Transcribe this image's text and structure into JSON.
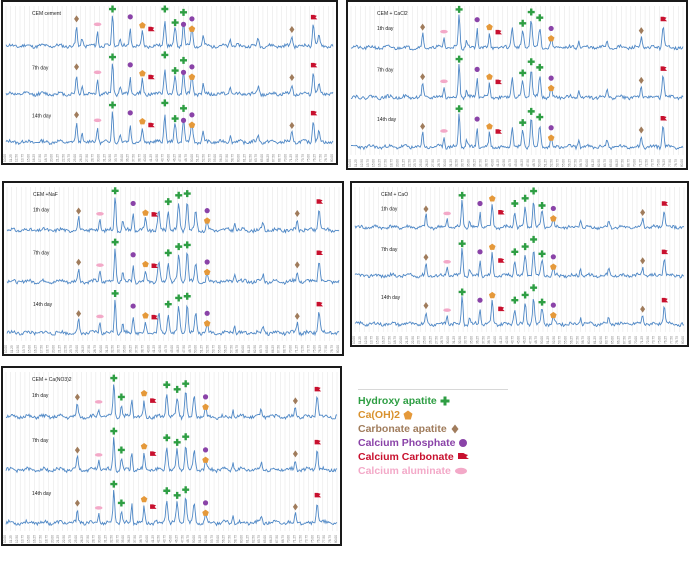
{
  "colors": {
    "line": "#4f88c6",
    "grid": "#e3e3e3",
    "axis_text": "#7a7a7a",
    "hydroxy_apatite": "#2e9e43",
    "caoh2": "#e5993a",
    "carbonate_apatite": "#a07c5c",
    "calcium_phosphate": "#8a43a8",
    "calcium_carbonate": "#c8102e",
    "calcium_aluminate": "#f3a9c8"
  },
  "legend": [
    {
      "key": "hydroxy_apatite",
      "label": "Hydroxy apatite",
      "icon": "cross-icon",
      "color": "#2e9e43"
    },
    {
      "key": "caoh2",
      "label": "Ca(OH)2",
      "icon": "pentagon-icon",
      "color": "#d9922e"
    },
    {
      "key": "carbonate_apatite",
      "label": "Carbonate apatite",
      "icon": "diamond-icon",
      "color": "#a07c5c"
    },
    {
      "key": "calcium_phosphate",
      "label": "Calcium Phosphate",
      "icon": "circle-icon",
      "color": "#8a43a8"
    },
    {
      "key": "calcium_carbonate",
      "label": "Calcium Carbonate",
      "icon": "flag-icon",
      "color": "#c8102e"
    },
    {
      "key": "calcium_aluminate",
      "label": "Calcium aluminate",
      "icon": "ellipse-icon",
      "color": "#f3a9c8"
    }
  ],
  "chart_data": [
    {
      "type": "line",
      "group": "CEM cement",
      "x_range": [
        10,
        80
      ],
      "y_range": [
        0,
        1
      ],
      "peaks": [
        {
          "x": 25.1,
          "h": 0.55,
          "w": 0.22
        },
        {
          "x": 26.3,
          "h": 0.25,
          "w": 0.25
        },
        {
          "x": 29.6,
          "h": 0.45,
          "w": 0.22
        },
        {
          "x": 32.8,
          "h": 0.95,
          "w": 0.25
        },
        {
          "x": 34.4,
          "h": 0.22,
          "w": 0.25
        },
        {
          "x": 36.6,
          "h": 0.55,
          "w": 0.22
        },
        {
          "x": 39.2,
          "h": 0.42,
          "w": 0.22
        },
        {
          "x": 44.0,
          "h": 0.78,
          "w": 0.3
        },
        {
          "x": 46.2,
          "h": 0.5,
          "w": 0.3
        },
        {
          "x": 48.0,
          "h": 0.68,
          "w": 0.3
        },
        {
          "x": 49.8,
          "h": 0.55,
          "w": 0.3
        },
        {
          "x": 52.2,
          "h": 0.28,
          "w": 0.25
        },
        {
          "x": 58.0,
          "h": 0.2,
          "w": 0.25
        },
        {
          "x": 64.0,
          "h": 0.22,
          "w": 0.25
        },
        {
          "x": 71.2,
          "h": 0.3,
          "w": 0.25
        },
        {
          "x": 75.8,
          "h": 0.65,
          "w": 0.3
        },
        {
          "x": 77.0,
          "h": 0.3,
          "w": 0.3
        }
      ],
      "markers": [
        {
          "type": "carbonate_apatite",
          "x": 25.1,
          "dy": -6
        },
        {
          "type": "calcium_aluminate",
          "x": 29.6,
          "dy": -4
        },
        {
          "type": "hydroxy_apatite",
          "x": 32.8,
          "dy": -2
        },
        {
          "type": "calcium_phosphate",
          "x": 36.6,
          "dy": -8
        },
        {
          "type": "caoh2",
          "x": 39.2,
          "dy": -4
        },
        {
          "type": "calcium_carbonate",
          "x": 41.0,
          "dy": -6
        },
        {
          "type": "hydroxy_apatite",
          "x": 44.0,
          "dy": -10
        },
        {
          "type": "hydroxy_apatite",
          "x": 46.2,
          "dy": -4
        },
        {
          "type": "hydroxy_apatite",
          "x": 48.0,
          "dy": -8
        },
        {
          "type": "calcium_phosphate",
          "x": 48.0,
          "dy": 4
        },
        {
          "type": "calcium_phosphate",
          "x": 49.8,
          "dy": -6
        },
        {
          "type": "caoh2",
          "x": 49.8,
          "dy": 4
        },
        {
          "type": "carbonate_apatite",
          "x": 71.2,
          "dy": -4
        },
        {
          "type": "calcium_carbonate",
          "x": 75.8,
          "dy": -4
        }
      ],
      "traces": [
        {
          "label": "",
          "seed": 11
        },
        {
          "label": "7th day",
          "seed": 12
        },
        {
          "label": "14th day",
          "seed": 13
        }
      ]
    },
    {
      "type": "line",
      "group": "CEM + CaCl2",
      "x_range": [
        10,
        80
      ],
      "y_range": [
        0,
        1
      ],
      "peaks": [
        {
          "x": 25.1,
          "h": 0.4,
          "w": 0.22
        },
        {
          "x": 29.6,
          "h": 0.3,
          "w": 0.22
        },
        {
          "x": 32.8,
          "h": 0.95,
          "w": 0.25
        },
        {
          "x": 34.4,
          "h": 0.2,
          "w": 0.25
        },
        {
          "x": 36.6,
          "h": 0.55,
          "w": 0.22
        },
        {
          "x": 39.2,
          "h": 0.4,
          "w": 0.22
        },
        {
          "x": 44.0,
          "h": 0.62,
          "w": 0.3
        },
        {
          "x": 46.2,
          "h": 0.45,
          "w": 0.3
        },
        {
          "x": 48.0,
          "h": 0.82,
          "w": 0.3
        },
        {
          "x": 49.8,
          "h": 0.55,
          "w": 0.3
        },
        {
          "x": 52.2,
          "h": 0.25,
          "w": 0.25
        },
        {
          "x": 58.0,
          "h": 0.2,
          "w": 0.25
        },
        {
          "x": 64.0,
          "h": 0.2,
          "w": 0.25
        },
        {
          "x": 71.2,
          "h": 0.3,
          "w": 0.25
        },
        {
          "x": 75.8,
          "h": 0.62,
          "w": 0.3
        }
      ],
      "markers": [
        {
          "type": "carbonate_apatite",
          "x": 25.1,
          "dy": -4
        },
        {
          "type": "calcium_aluminate",
          "x": 29.6,
          "dy": -3
        },
        {
          "type": "hydroxy_apatite",
          "x": 32.8,
          "dy": -2
        },
        {
          "type": "calcium_phosphate",
          "x": 36.6,
          "dy": -6
        },
        {
          "type": "caoh2",
          "x": 39.2,
          "dy": -4
        },
        {
          "type": "calcium_carbonate",
          "x": 41.0,
          "dy": -4
        },
        {
          "type": "hydroxy_apatite",
          "x": 46.2,
          "dy": -6
        },
        {
          "type": "hydroxy_apatite",
          "x": 48.0,
          "dy": -4
        },
        {
          "type": "hydroxy_apatite",
          "x": 49.8,
          "dy": -8
        },
        {
          "type": "calcium_phosphate",
          "x": 52.2,
          "dy": -8
        },
        {
          "type": "caoh2",
          "x": 52.2,
          "dy": 2
        },
        {
          "type": "carbonate_apatite",
          "x": 71.2,
          "dy": -4
        },
        {
          "type": "calcium_carbonate",
          "x": 75.8,
          "dy": -4
        }
      ],
      "traces": [
        {
          "label": "1th day",
          "seed": 21
        },
        {
          "label": "7th day",
          "seed": 22
        },
        {
          "label": "14th day",
          "seed": 23
        }
      ]
    },
    {
      "type": "line",
      "group": "CEM +NaF",
      "x_range": [
        10,
        80
      ],
      "y_range": [
        0,
        1
      ],
      "peaks": [
        {
          "x": 25.1,
          "h": 0.35,
          "w": 0.22
        },
        {
          "x": 29.6,
          "h": 0.3,
          "w": 0.22
        },
        {
          "x": 32.8,
          "h": 0.95,
          "w": 0.25
        },
        {
          "x": 34.4,
          "h": 0.25,
          "w": 0.25
        },
        {
          "x": 36.6,
          "h": 0.5,
          "w": 0.22
        },
        {
          "x": 39.2,
          "h": 0.3,
          "w": 0.22
        },
        {
          "x": 42.0,
          "h": 0.5,
          "w": 0.3
        },
        {
          "x": 44.0,
          "h": 0.55,
          "w": 0.3
        },
        {
          "x": 46.2,
          "h": 0.72,
          "w": 0.3
        },
        {
          "x": 48.0,
          "h": 0.82,
          "w": 0.3
        },
        {
          "x": 49.8,
          "h": 0.5,
          "w": 0.3
        },
        {
          "x": 52.2,
          "h": 0.25,
          "w": 0.25
        },
        {
          "x": 58.0,
          "h": 0.2,
          "w": 0.25
        },
        {
          "x": 64.0,
          "h": 0.2,
          "w": 0.25
        },
        {
          "x": 71.2,
          "h": 0.28,
          "w": 0.25
        },
        {
          "x": 75.8,
          "h": 0.6,
          "w": 0.3
        }
      ],
      "markers": [
        {
          "type": "hydroxy_apatite",
          "x": 32.8,
          "dy": -2
        },
        {
          "type": "carbonate_apatite",
          "x": 25.1,
          "dy": -4
        },
        {
          "type": "calcium_aluminate",
          "x": 29.6,
          "dy": -3
        },
        {
          "type": "calcium_phosphate",
          "x": 36.6,
          "dy": -6
        },
        {
          "type": "caoh2",
          "x": 39.2,
          "dy": -4
        },
        {
          "type": "calcium_carbonate",
          "x": 41.0,
          "dy": -4
        },
        {
          "type": "hydroxy_apatite",
          "x": 44.0,
          "dy": -6
        },
        {
          "type": "hydroxy_apatite",
          "x": 46.2,
          "dy": -6
        },
        {
          "type": "hydroxy_apatite",
          "x": 48.0,
          "dy": -4
        },
        {
          "type": "calcium_phosphate",
          "x": 52.2,
          "dy": -8
        },
        {
          "type": "caoh2",
          "x": 52.2,
          "dy": 2
        },
        {
          "type": "carbonate_apatite",
          "x": 71.2,
          "dy": -4
        },
        {
          "type": "calcium_carbonate",
          "x": 75.8,
          "dy": -4
        }
      ],
      "traces": [
        {
          "label": "1th day",
          "seed": 31
        },
        {
          "label": "7th day",
          "seed": 32
        },
        {
          "label": "14th day",
          "seed": 33
        }
      ]
    },
    {
      "type": "line",
      "group": "CEM + CaO",
      "x_range": [
        10,
        80
      ],
      "y_range": [
        0,
        1
      ],
      "peaks": [
        {
          "x": 25.1,
          "h": 0.35,
          "w": 0.22
        },
        {
          "x": 29.6,
          "h": 0.25,
          "w": 0.22
        },
        {
          "x": 32.8,
          "h": 0.8,
          "w": 0.25
        },
        {
          "x": 34.4,
          "h": 0.2,
          "w": 0.25
        },
        {
          "x": 36.6,
          "h": 0.45,
          "w": 0.22
        },
        {
          "x": 39.2,
          "h": 0.65,
          "w": 0.25
        },
        {
          "x": 44.0,
          "h": 0.45,
          "w": 0.3
        },
        {
          "x": 46.2,
          "h": 0.6,
          "w": 0.3
        },
        {
          "x": 48.0,
          "h": 0.75,
          "w": 0.3
        },
        {
          "x": 49.8,
          "h": 0.45,
          "w": 0.3
        },
        {
          "x": 52.2,
          "h": 0.25,
          "w": 0.25
        },
        {
          "x": 58.0,
          "h": 0.2,
          "w": 0.25
        },
        {
          "x": 64.0,
          "h": 0.2,
          "w": 0.25
        },
        {
          "x": 71.2,
          "h": 0.25,
          "w": 0.25
        },
        {
          "x": 75.8,
          "h": 0.5,
          "w": 0.3
        }
      ],
      "markers": [
        {
          "type": "carbonate_apatite",
          "x": 25.1,
          "dy": -4
        },
        {
          "type": "calcium_aluminate",
          "x": 29.6,
          "dy": -3
        },
        {
          "type": "hydroxy_apatite",
          "x": 32.8,
          "dy": -2
        },
        {
          "type": "calcium_phosphate",
          "x": 36.6,
          "dy": -6
        },
        {
          "type": "caoh2",
          "x": 39.2,
          "dy": -4
        },
        {
          "type": "calcium_carbonate",
          "x": 41.0,
          "dy": -4
        },
        {
          "type": "hydroxy_apatite",
          "x": 44.0,
          "dy": -6
        },
        {
          "type": "hydroxy_apatite",
          "x": 46.2,
          "dy": -6
        },
        {
          "type": "hydroxy_apatite",
          "x": 48.0,
          "dy": -8
        },
        {
          "type": "hydroxy_apatite",
          "x": 49.8,
          "dy": -4
        },
        {
          "type": "calcium_phosphate",
          "x": 52.2,
          "dy": -8
        },
        {
          "type": "caoh2",
          "x": 52.2,
          "dy": 2
        },
        {
          "type": "carbonate_apatite",
          "x": 71.2,
          "dy": -4
        },
        {
          "type": "calcium_carbonate",
          "x": 75.8,
          "dy": -4
        }
      ],
      "traces": [
        {
          "label": "1th day",
          "seed": 41
        },
        {
          "label": "7th day",
          "seed": 42
        },
        {
          "label": "14th day",
          "seed": 43
        }
      ]
    },
    {
      "type": "line",
      "group": "CEM + Ca(NO3)2",
      "x_range": [
        10,
        80
      ],
      "y_range": [
        0,
        1
      ],
      "peaks": [
        {
          "x": 25.1,
          "h": 0.35,
          "w": 0.22
        },
        {
          "x": 29.6,
          "h": 0.25,
          "w": 0.22
        },
        {
          "x": 32.8,
          "h": 0.9,
          "w": 0.25
        },
        {
          "x": 34.4,
          "h": 0.3,
          "w": 0.25
        },
        {
          "x": 36.6,
          "h": 0.5,
          "w": 0.22
        },
        {
          "x": 39.2,
          "h": 0.45,
          "w": 0.22
        },
        {
          "x": 44.0,
          "h": 0.62,
          "w": 0.3
        },
        {
          "x": 46.2,
          "h": 0.5,
          "w": 0.3
        },
        {
          "x": 48.0,
          "h": 0.7,
          "w": 0.3
        },
        {
          "x": 49.8,
          "h": 0.5,
          "w": 0.3
        },
        {
          "x": 52.2,
          "h": 0.25,
          "w": 0.25
        },
        {
          "x": 58.0,
          "h": 0.2,
          "w": 0.25
        },
        {
          "x": 64.0,
          "h": 0.2,
          "w": 0.25
        },
        {
          "x": 71.2,
          "h": 0.25,
          "w": 0.25
        },
        {
          "x": 75.8,
          "h": 0.55,
          "w": 0.3
        }
      ],
      "markers": [
        {
          "type": "carbonate_apatite",
          "x": 25.1,
          "dy": -4
        },
        {
          "type": "calcium_aluminate",
          "x": 29.6,
          "dy": -3
        },
        {
          "type": "hydroxy_apatite",
          "x": 32.8,
          "dy": -2
        },
        {
          "type": "hydroxy_apatite",
          "x": 34.4,
          "dy": -6
        },
        {
          "type": "caoh2",
          "x": 39.2,
          "dy": -4
        },
        {
          "type": "calcium_carbonate",
          "x": 41.0,
          "dy": -4
        },
        {
          "type": "hydroxy_apatite",
          "x": 44.0,
          "dy": -6
        },
        {
          "type": "hydroxy_apatite",
          "x": 46.2,
          "dy": -6
        },
        {
          "type": "hydroxy_apatite",
          "x": 48.0,
          "dy": -4
        },
        {
          "type": "calcium_phosphate",
          "x": 52.2,
          "dy": -8
        },
        {
          "type": "caoh2",
          "x": 52.2,
          "dy": 2
        },
        {
          "type": "carbonate_apatite",
          "x": 71.2,
          "dy": -4
        },
        {
          "type": "calcium_carbonate",
          "x": 75.8,
          "dy": -4
        }
      ],
      "traces": [
        {
          "label": "1th day",
          "seed": 51
        },
        {
          "label": "7th day",
          "seed": 52
        },
        {
          "label": "14th day",
          "seed": 53
        }
      ]
    }
  ]
}
